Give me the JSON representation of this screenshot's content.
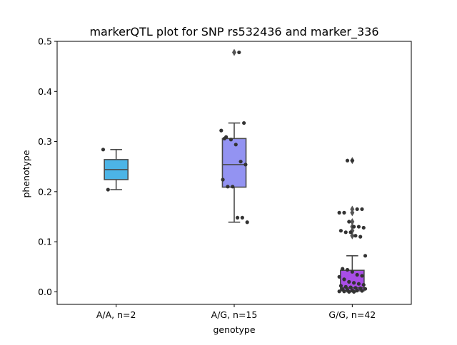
{
  "chart_data": {
    "type": "box",
    "title": "markerQTL plot for SNP rs532436 and marker_336",
    "xlabel": "genotype",
    "ylabel": "phenotype",
    "categories": [
      "A/A, n=2",
      "A/G, n=15",
      "G/G, n=42"
    ],
    "ylim": [
      -0.025,
      0.5
    ],
    "yticks": [
      0.0,
      0.1,
      0.2,
      0.3,
      0.4,
      0.5
    ],
    "ytick_labels": [
      "0.0",
      "0.1",
      "0.2",
      "0.3",
      "0.4",
      "0.5"
    ],
    "grid": false,
    "colors": {
      "box_fills": [
        "#4cb4e6",
        "#9393f2",
        "#a94ee6"
      ],
      "box_edge": "#4a4a4a",
      "points": "#333333",
      "outlier": "#555555"
    },
    "boxes": [
      {
        "q1": 0.224,
        "median": 0.244,
        "q3": 0.264,
        "whisker_low": 0.204,
        "whisker_high": 0.284,
        "outliers": []
      },
      {
        "q1": 0.209,
        "median": 0.254,
        "q3": 0.306,
        "whisker_low": 0.139,
        "whisker_high": 0.337,
        "outliers": [
          0.478
        ]
      },
      {
        "q1": 0.002,
        "median": 0.008,
        "q3": 0.043,
        "whisker_low": 0.0,
        "whisker_high": 0.072,
        "outliers": [
          0.262,
          0.165,
          0.158,
          0.14,
          0.13,
          0.122,
          0.112
        ]
      }
    ],
    "points": [
      [
        0.284,
        0.204
      ],
      [
        0.478,
        0.337,
        0.322,
        0.309,
        0.304,
        0.294,
        0.26,
        0.254,
        0.224,
        0.21,
        0.21,
        0.148,
        0.148,
        0.139,
        0.306
      ],
      [
        0.262,
        0.262,
        0.165,
        0.165,
        0.158,
        0.158,
        0.14,
        0.13,
        0.13,
        0.128,
        0.122,
        0.119,
        0.119,
        0.112,
        0.11,
        0.072,
        0.046,
        0.044,
        0.04,
        0.034,
        0.032,
        0.03,
        0.025,
        0.02,
        0.018,
        0.016,
        0.014,
        0.012,
        0.01,
        0.009,
        0.008,
        0.007,
        0.006,
        0.005,
        0.004,
        0.003,
        0.003,
        0.002,
        0.001,
        0.001,
        0.0,
        0.0
      ]
    ]
  }
}
